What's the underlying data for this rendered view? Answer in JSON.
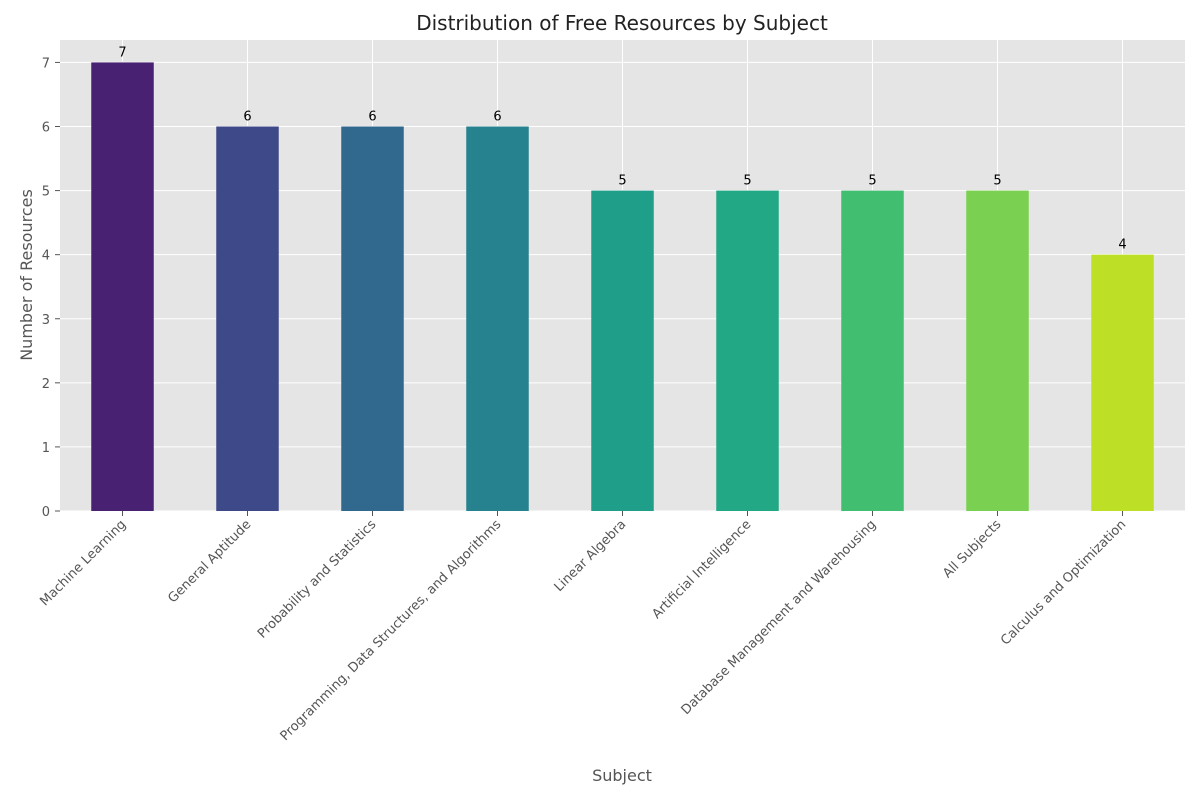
{
  "chart_data": {
    "type": "bar",
    "title": "Distribution of Free Resources by Subject",
    "x_label": "Subject",
    "y_label": "Number of Resources",
    "categories": [
      "Machine Learning",
      "General Aptitude",
      "Probability and Statistics",
      "Programming, Data Structures, and Algorithms",
      "Linear Algebra",
      "Artificial Intelligence",
      "Database Management and Warehousing",
      "All Subjects",
      "Calculus and Optimization"
    ],
    "values": [
      7,
      6,
      6,
      6,
      5,
      5,
      5,
      5,
      4
    ],
    "colors": [
      "#482173",
      "#3e4989",
      "#31688e",
      "#26828e",
      "#1f9e89",
      "#22a884",
      "#42be71",
      "#7ad151",
      "#bddf26"
    ],
    "ylim": [
      0,
      7.35
    ],
    "yticks": [
      0,
      1,
      2,
      3,
      4,
      5,
      6,
      7
    ],
    "grid": true
  }
}
